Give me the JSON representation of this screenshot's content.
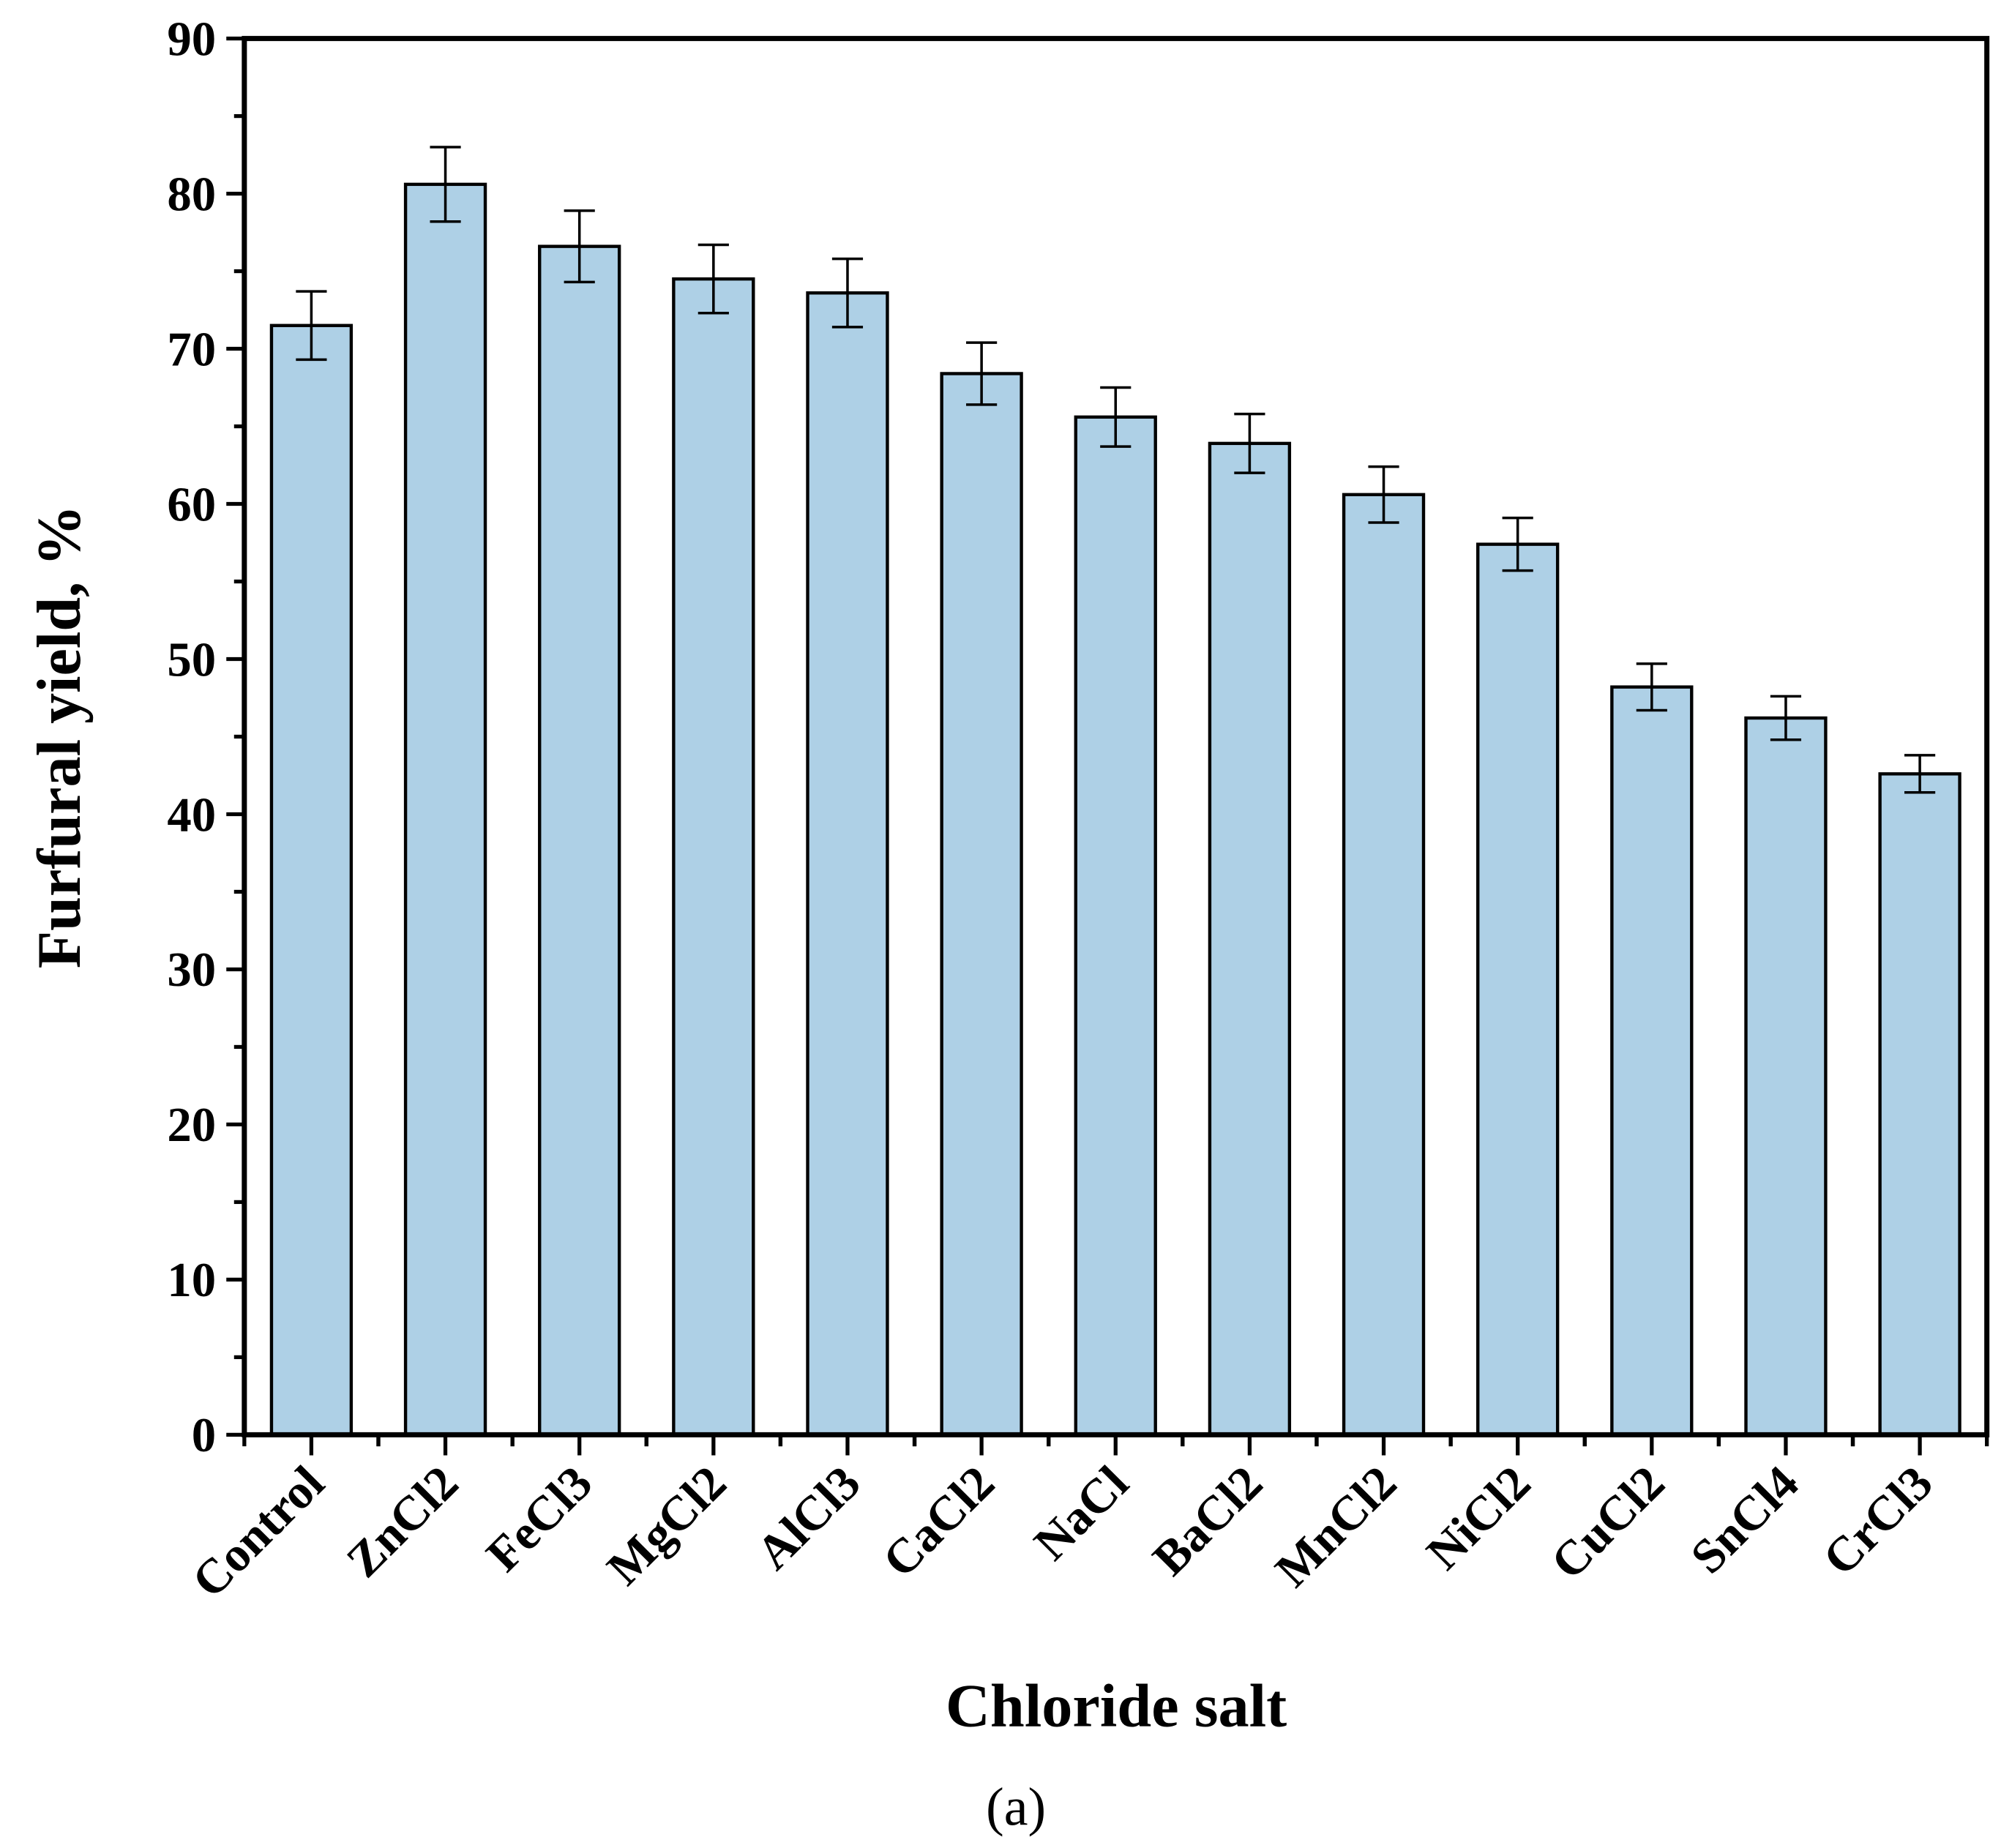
{
  "chart_data": {
    "type": "bar",
    "x_label": "Chloride salt",
    "y_label": "Furfural yield, %",
    "caption": "(a)",
    "categories": [
      "Control",
      "ZnCl2",
      "FeCl3",
      "MgCl2",
      "AlCl3",
      "CaCl2",
      "NaCl",
      "BaCl2",
      "MnCl2",
      "NiCl2",
      "CuCl2",
      "SnCl4",
      "CrCl3"
    ],
    "values": [
      71.5,
      80.6,
      76.6,
      74.5,
      73.6,
      68.4,
      65.6,
      63.9,
      60.6,
      57.4,
      48.2,
      46.2,
      42.6
    ],
    "errors": [
      2.2,
      2.4,
      2.3,
      2.2,
      2.2,
      2.0,
      1.9,
      1.9,
      1.8,
      1.7,
      1.5,
      1.4,
      1.2
    ],
    "color": "#aed0e6",
    "ylim": [
      0,
      90
    ],
    "yticks": [
      0,
      10,
      20,
      30,
      40,
      50,
      60,
      70,
      80,
      90
    ],
    "grid": false
  }
}
